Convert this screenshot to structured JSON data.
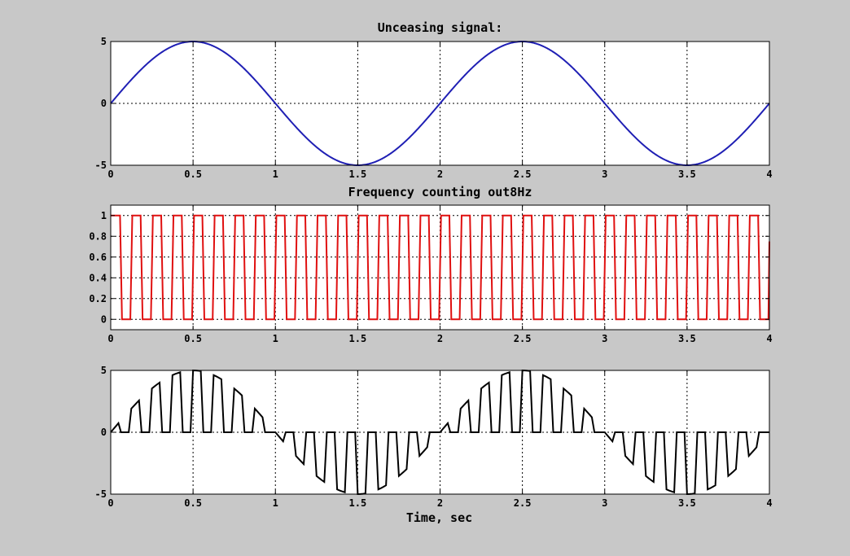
{
  "figure": {
    "background": "#c8c8c8",
    "axes_background": "#ffffff"
  },
  "chart_data": [
    {
      "type": "line",
      "title": "Unceasing signal:",
      "xlabel": "",
      "ylabel": "",
      "xlim": [
        0,
        4
      ],
      "ylim": [
        -5,
        5
      ],
      "x_ticks": [
        0,
        0.5,
        1,
        1.5,
        2,
        2.5,
        3,
        3.5,
        4
      ],
      "x_tick_labels": [
        "0",
        "0.5",
        "1",
        "1.5",
        "2",
        "2.5",
        "3",
        "3.5",
        "4"
      ],
      "y_ticks": [
        -5,
        0,
        5
      ],
      "y_tick_labels": [
        "-5",
        "0",
        "5"
      ],
      "grid": true,
      "legend": "none",
      "color": "#1f1fb4",
      "series": [
        {
          "amplitude": 5,
          "frequency_hz": 0.5,
          "x": [
            0,
            0.1,
            0.2,
            0.3,
            0.4,
            0.5,
            0.6,
            0.7,
            0.8,
            0.9,
            1.0,
            1.1,
            1.2,
            1.3,
            1.4,
            1.5,
            1.6,
            1.7,
            1.8,
            1.9,
            2.0,
            2.1,
            2.2,
            2.3,
            2.4,
            2.5,
            2.6,
            2.7,
            2.8,
            2.9,
            3.0,
            3.1,
            3.2,
            3.3,
            3.4,
            3.5,
            3.6,
            3.7,
            3.8,
            3.9,
            4.0
          ],
          "values": [
            0,
            1.55,
            2.94,
            4.05,
            4.76,
            5,
            4.76,
            4.05,
            2.94,
            1.55,
            0,
            -1.55,
            -2.94,
            -4.05,
            -4.76,
            -5,
            -4.76,
            -4.05,
            -2.94,
            -1.55,
            0,
            1.55,
            2.94,
            4.05,
            4.76,
            5,
            4.76,
            4.05,
            2.94,
            1.55,
            0,
            -1.55,
            -2.94,
            -4.05,
            -4.76,
            -5,
            -4.76,
            -4.05,
            -2.94,
            -1.55,
            0
          ]
        }
      ]
    },
    {
      "type": "line",
      "title": "Frequency counting out8Hz",
      "xlabel": "",
      "ylabel": "",
      "xlim": [
        0,
        4
      ],
      "ylim": [
        -0.1,
        1.1
      ],
      "x_ticks": [
        0,
        0.5,
        1,
        1.5,
        2,
        2.5,
        3,
        3.5,
        4
      ],
      "x_tick_labels": [
        "0",
        "0.5",
        "1",
        "1.5",
        "2",
        "2.5",
        "3",
        "3.5",
        "4"
      ],
      "y_ticks": [
        0,
        0.2,
        0.4,
        0.6,
        0.8,
        1
      ],
      "y_tick_labels": [
        "0",
        "0.2",
        "0.4",
        "0.6",
        "0.8",
        "1"
      ],
      "grid": true,
      "legend": "none",
      "color": "#e01010",
      "series": [
        {
          "waveform": "square",
          "frequency_hz": 8,
          "low": 0,
          "high": 1,
          "duty_cycle": 0.5,
          "period_sec": 0.125
        }
      ]
    },
    {
      "type": "line",
      "title": "",
      "xlabel": "Time, sec",
      "ylabel": "",
      "xlim": [
        0,
        4
      ],
      "ylim": [
        -5,
        5
      ],
      "x_ticks": [
        0,
        0.5,
        1,
        1.5,
        2,
        2.5,
        3,
        3.5,
        4
      ],
      "x_tick_labels": [
        "0",
        "0.5",
        "1",
        "1.5",
        "2",
        "2.5",
        "3",
        "3.5",
        "4"
      ],
      "y_ticks": [
        -5,
        0,
        5
      ],
      "y_tick_labels": [
        "-5",
        "0",
        "5"
      ],
      "grid": true,
      "legend": "none",
      "color": "#000000",
      "series": [
        {
          "description_of_values": "product of the sine signal and the 8Hz square wave",
          "amplitude": 5,
          "frequency_hz": 0.5,
          "gate_frequency_hz": 8
        }
      ]
    }
  ]
}
